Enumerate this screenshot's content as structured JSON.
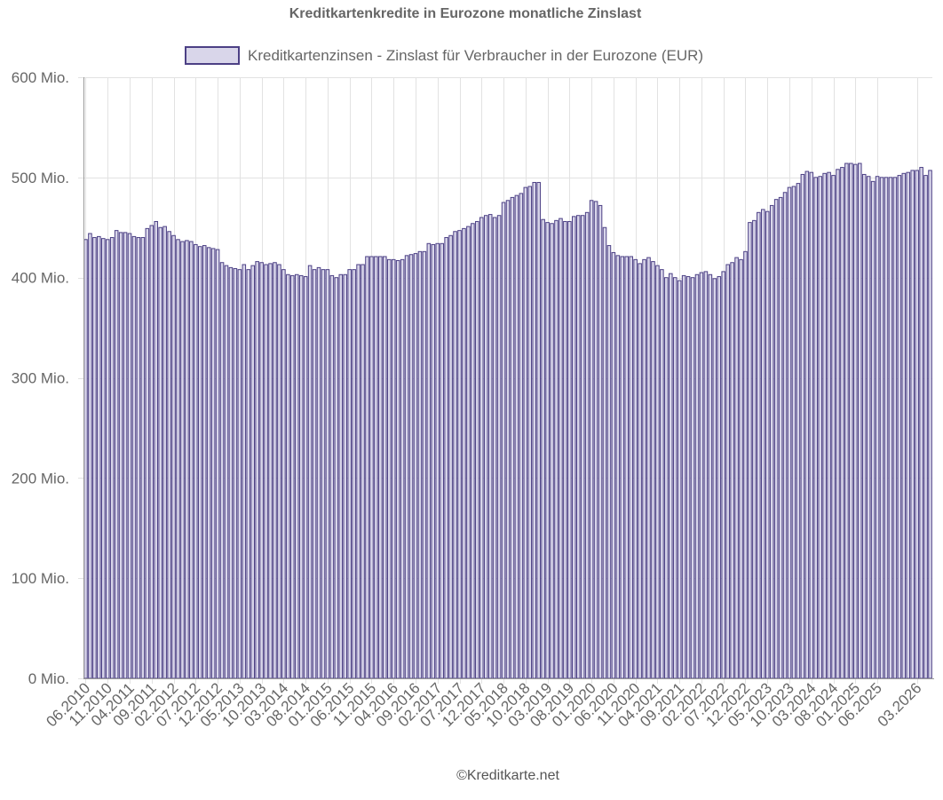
{
  "chart_data": {
    "type": "bar",
    "title": "Kreditkartenkredite in Eurozone monatliche Zinslast",
    "legend_position": "top",
    "series": [
      {
        "name": "Kreditkartenzinsen - Zinslast für Verbraucher in der Eurozone (EUR)",
        "color": "#d9d6ea",
        "border_color": "#4c4085",
        "start": "06.2010",
        "values": [
          438,
          444,
          440,
          441,
          439,
          438,
          440,
          447,
          445,
          445,
          444,
          441,
          440,
          440,
          449,
          452,
          456,
          450,
          451,
          446,
          442,
          438,
          436,
          437,
          436,
          433,
          431,
          432,
          430,
          429,
          428,
          415,
          412,
          410,
          409,
          408,
          413,
          408,
          412,
          416,
          415,
          413,
          414,
          415,
          413,
          408,
          403,
          402,
          403,
          402,
          401,
          412,
          408,
          410,
          408,
          408,
          402,
          400,
          403,
          403,
          408,
          408,
          413,
          413,
          421,
          421,
          421,
          421,
          421,
          418,
          418,
          417,
          418,
          422,
          423,
          424,
          426,
          426,
          434,
          433,
          434,
          434,
          440,
          442,
          446,
          447,
          449,
          451,
          454,
          456,
          460,
          462,
          463,
          460,
          462,
          475,
          477,
          480,
          482,
          484,
          490,
          491,
          495,
          495,
          458,
          455,
          454,
          457,
          459,
          456,
          456,
          461,
          462,
          462,
          465,
          477,
          476,
          472,
          450,
          432,
          425,
          422,
          421,
          421,
          421,
          418,
          414,
          418,
          420,
          416,
          412,
          408,
          400,
          404,
          400,
          397,
          402,
          401,
          400,
          403,
          405,
          406,
          403,
          399,
          401,
          406,
          413,
          415,
          420,
          418,
          426,
          455,
          457,
          465,
          468,
          466,
          472,
          478,
          480,
          485,
          490,
          491,
          494,
          503,
          506,
          505,
          500,
          501,
          504,
          505,
          502,
          508,
          510,
          514,
          514,
          513,
          514,
          503,
          501,
          496,
          501,
          500,
          500,
          500,
          500,
          502,
          504,
          505,
          507,
          507,
          510,
          502,
          507
        ]
      }
    ],
    "x_tick_labels": [
      "06.2010",
      "11.2010",
      "04.2011",
      "09.2011",
      "02.2012",
      "07.2012",
      "12.2012",
      "05.2013",
      "10.2013",
      "03.2014",
      "08.2014",
      "01.2015",
      "06.2015",
      "11.2015",
      "04.2016",
      "09.2016",
      "02.2017",
      "07.2017",
      "12.2017",
      "05.2018",
      "10.2018",
      "03.2019",
      "08.2019",
      "01.2020",
      "06.2020",
      "11.2020",
      "04.2021",
      "09.2021",
      "02.2022",
      "07.2022",
      "12.2022",
      "05.2023",
      "10.2023",
      "03.2024",
      "08.2024",
      "01.2025",
      "06.2025",
      "03.2026"
    ],
    "y_ticks": [
      0,
      100,
      200,
      300,
      400,
      500,
      600
    ],
    "y_tick_labels": [
      "0 Mio.",
      "100 Mio.",
      "200 Mio.",
      "300 Mio.",
      "400 Mio.",
      "500 Mio.",
      "600 Mio."
    ],
    "ylim": [
      0,
      600
    ],
    "unit": "Mio. EUR",
    "grid": true
  },
  "footer": {
    "credit": "©Kreditkarte.net"
  }
}
